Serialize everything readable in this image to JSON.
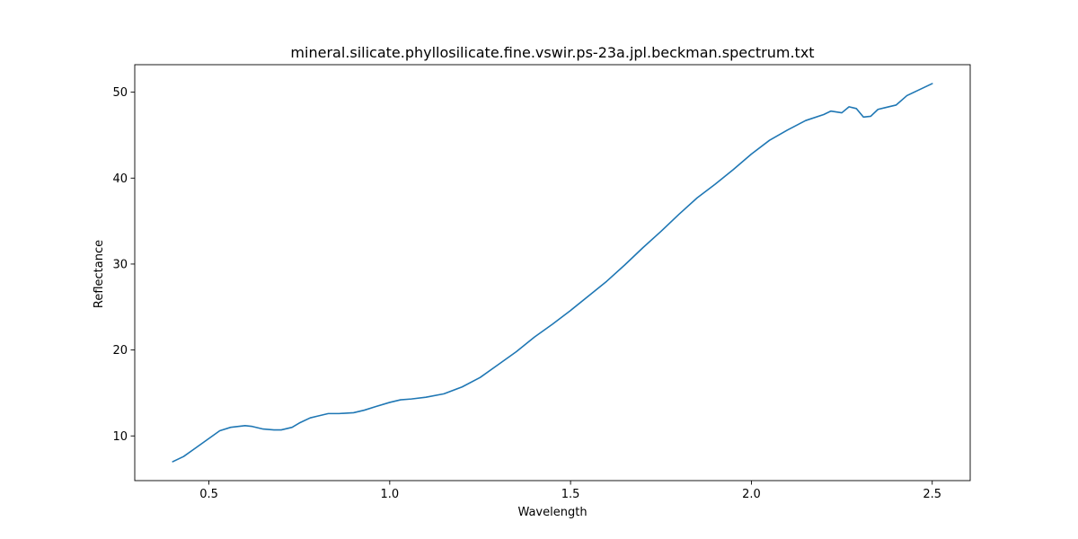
{
  "chart_data": {
    "type": "line",
    "title": "mineral.silicate.phyllosilicate.fine.vswir.ps-23a.jpl.beckman.spectrum.txt",
    "xlabel": "Wavelength",
    "ylabel": "Reflectance",
    "xlim": [
      0.295,
      2.605
    ],
    "ylim": [
      4.8,
      53.2
    ],
    "x_ticks": [
      0.5,
      1.0,
      1.5,
      2.0,
      2.5
    ],
    "x_tick_labels": [
      "0.5",
      "1.0",
      "1.5",
      "2.0",
      "2.5"
    ],
    "y_ticks": [
      10,
      20,
      30,
      40,
      50
    ],
    "y_tick_labels": [
      "10",
      "20",
      "30",
      "40",
      "50"
    ],
    "grid": false,
    "line_color": "#1f77b4",
    "series": [
      {
        "x": [
          0.4,
          0.43,
          0.46,
          0.5,
          0.53,
          0.56,
          0.6,
          0.62,
          0.65,
          0.68,
          0.7,
          0.73,
          0.75,
          0.78,
          0.8,
          0.83,
          0.86,
          0.9,
          0.93,
          0.96,
          1.0,
          1.03,
          1.06,
          1.1,
          1.15,
          1.2,
          1.25,
          1.3,
          1.35,
          1.4,
          1.45,
          1.5,
          1.55,
          1.6,
          1.65,
          1.7,
          1.75,
          1.8,
          1.85,
          1.9,
          1.95,
          2.0,
          2.05,
          2.1,
          2.15,
          2.2,
          2.22,
          2.25,
          2.27,
          2.29,
          2.31,
          2.33,
          2.35,
          2.37,
          2.4,
          2.43,
          2.46,
          2.5
        ],
        "y": [
          7.0,
          7.6,
          8.5,
          9.7,
          10.6,
          11.0,
          11.2,
          11.1,
          10.8,
          10.7,
          10.7,
          11.0,
          11.5,
          12.1,
          12.3,
          12.6,
          12.6,
          12.7,
          13.0,
          13.4,
          13.9,
          14.2,
          14.3,
          14.5,
          14.9,
          15.7,
          16.8,
          18.3,
          19.8,
          21.5,
          23.0,
          24.6,
          26.3,
          28.0,
          29.9,
          31.9,
          33.8,
          35.8,
          37.7,
          39.3,
          41.0,
          42.8,
          44.4,
          45.6,
          46.7,
          47.4,
          47.8,
          47.6,
          48.3,
          48.1,
          47.1,
          47.2,
          48.0,
          48.2,
          48.5,
          49.6,
          50.2,
          51.0
        ]
      }
    ]
  }
}
